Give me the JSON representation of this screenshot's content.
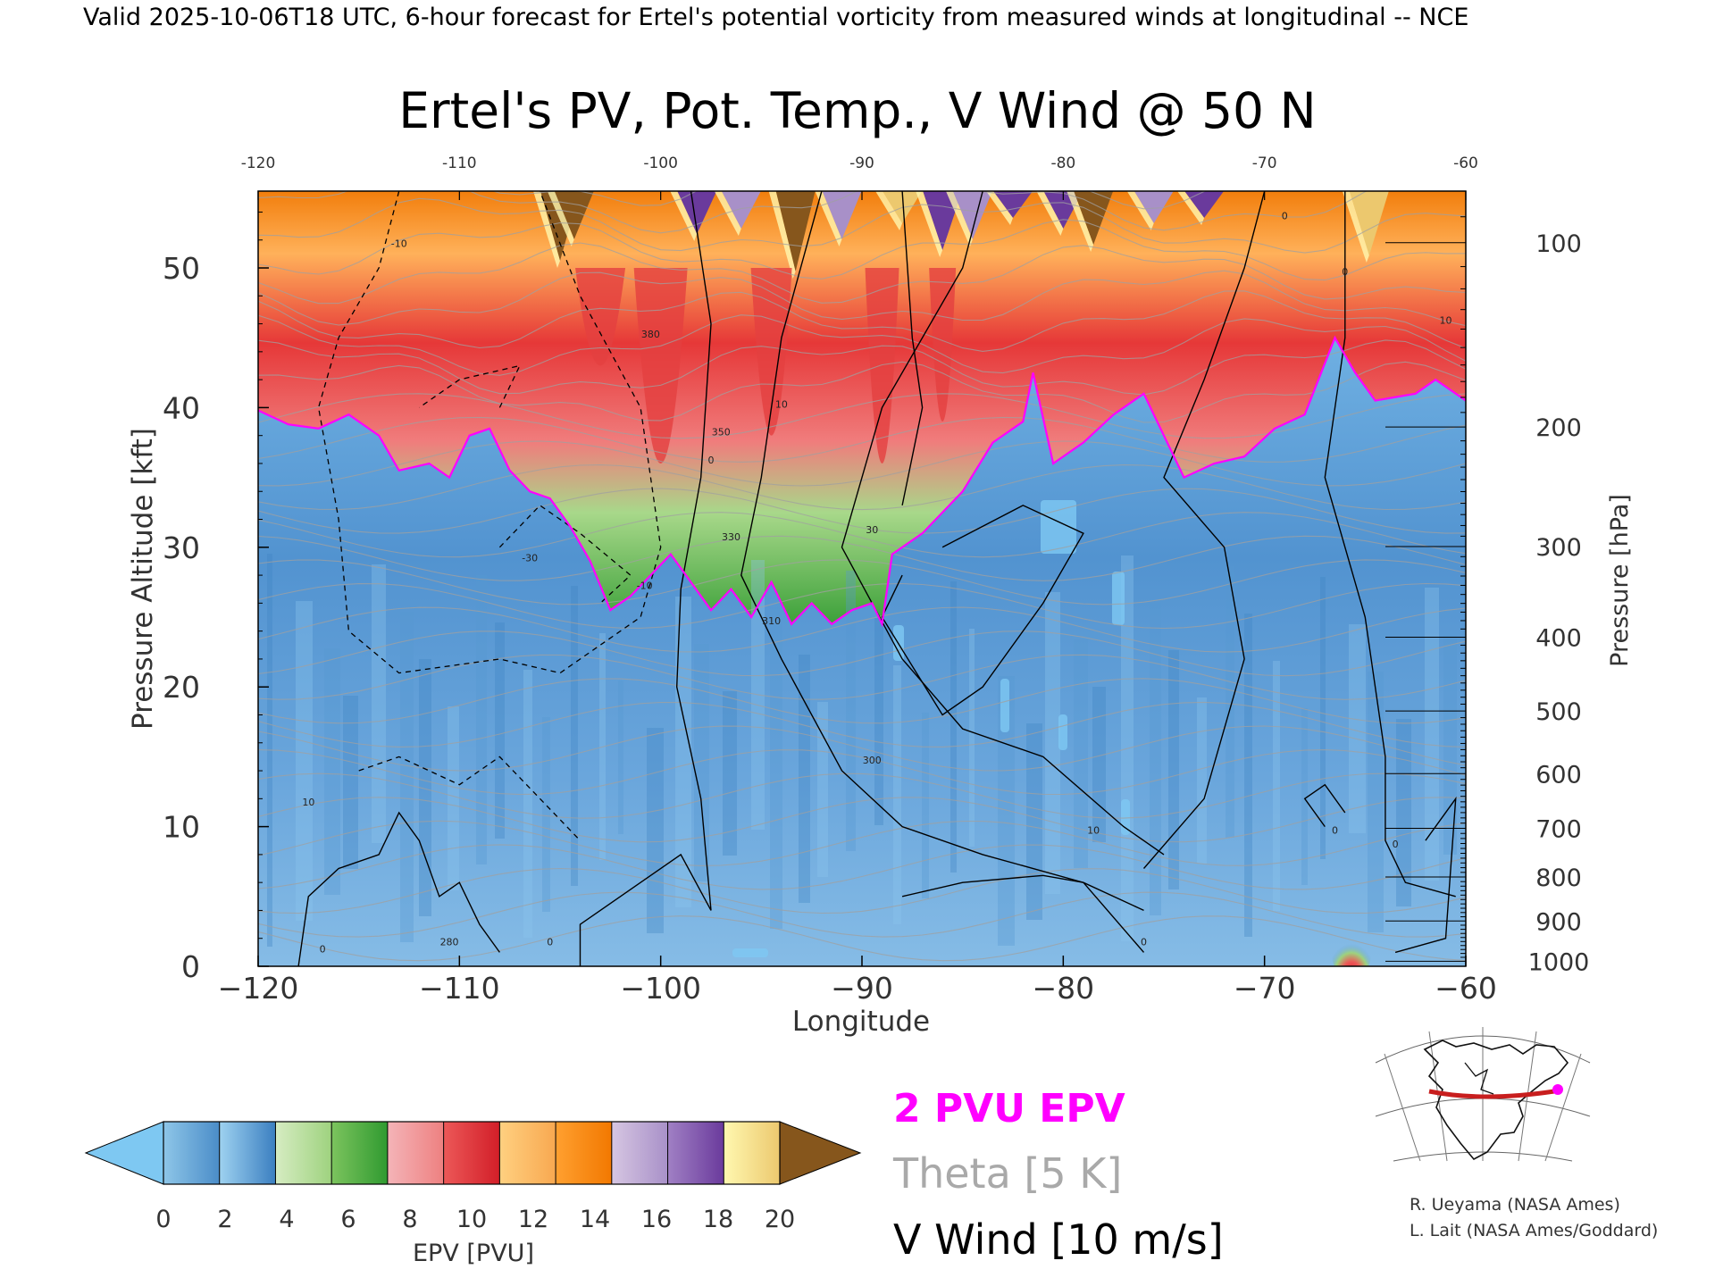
{
  "header": "Valid 2025-10-06T18 UTC, 6-hour forecast for Ertel's potential vorticity from measured winds at longitudinal -- NCE",
  "chart_data": {
    "type": "heatmap",
    "title": "Ertel's PV, Pot. Temp., V Wind @ 50 N",
    "xlabel": "Longitude",
    "ylabel": "Pressure Altitude [kft]",
    "ylabel_right": "Pressure [hPa]",
    "xlim": [
      -120,
      -60
    ],
    "ylim": [
      0,
      55.5
    ],
    "x_ticks": [
      -120,
      -110,
      -100,
      -90,
      -80,
      -70,
      -60
    ],
    "x_tick_labels": [
      "−120",
      "−110",
      "−100",
      "−90",
      "−80",
      "−70",
      "−60"
    ],
    "top_tick_labels": [
      "-120",
      "-110",
      "-100",
      "-90",
      "-80",
      "-70",
      "-60"
    ],
    "y_ticks": [
      0,
      10,
      20,
      30,
      40,
      50
    ],
    "y_tick_labels": [
      "0",
      "10",
      "20",
      "30",
      "40",
      "50"
    ],
    "pressure_ticks": [
      {
        "hpa": 100,
        "label": "100"
      },
      {
        "hpa": 200,
        "label": "200"
      },
      {
        "hpa": 300,
        "label": "300"
      },
      {
        "hpa": 400,
        "label": "400"
      },
      {
        "hpa": 500,
        "label": "500"
      },
      {
        "hpa": 600,
        "label": "600"
      },
      {
        "hpa": 700,
        "label": "700"
      },
      {
        "hpa": 800,
        "label": "800"
      },
      {
        "hpa": 900,
        "label": "900"
      },
      {
        "hpa": 1000,
        "label": "1000"
      }
    ],
    "colorbar": {
      "label": "EPV [PVU]",
      "ticks": [
        "0",
        "2",
        "4",
        "6",
        "8",
        "10",
        "12",
        "14",
        "16",
        "18",
        "20"
      ],
      "under_color": "#7ec8f2",
      "over_color": "#86561c",
      "bins": [
        [
          "#8ec6e8",
          "#4a8cc8"
        ],
        [
          "#9ed2f0",
          "#3a7ec0"
        ],
        [
          "#d6ecc2",
          "#9ed27e"
        ],
        [
          "#7cc45e",
          "#2f9a30"
        ],
        [
          "#f4b4b8",
          "#ee8080"
        ],
        [
          "#ec5858",
          "#d21e28"
        ],
        [
          "#ffd080",
          "#f8a850"
        ],
        [
          "#ffa030",
          "#f27800"
        ],
        [
          "#d6c6e2",
          "#a890c8"
        ],
        [
          "#a080c4",
          "#6a3a9c"
        ],
        [
          "#fff8b0",
          "#ecc86e"
        ]
      ]
    },
    "legend": [
      {
        "label": "2 PVU EPV",
        "color": "#ff00ff"
      },
      {
        "label": "Theta [5 K]",
        "color": "#a9a9a9"
      },
      {
        "label": "V Wind [10 m/s]",
        "color": "#000000"
      }
    ],
    "tropopause_2pvu_kft": [
      {
        "lon": -120.0,
        "kft": 39.8
      },
      {
        "lon": -118.5,
        "kft": 38.8
      },
      {
        "lon": -117.0,
        "kft": 38.5
      },
      {
        "lon": -115.5,
        "kft": 39.5
      },
      {
        "lon": -114.0,
        "kft": 38.0
      },
      {
        "lon": -113.0,
        "kft": 35.5
      },
      {
        "lon": -111.5,
        "kft": 36.0
      },
      {
        "lon": -110.5,
        "kft": 35.0
      },
      {
        "lon": -109.5,
        "kft": 38.0
      },
      {
        "lon": -108.5,
        "kft": 38.5
      },
      {
        "lon": -107.5,
        "kft": 35.5
      },
      {
        "lon": -106.5,
        "kft": 34.0
      },
      {
        "lon": -105.5,
        "kft": 33.5
      },
      {
        "lon": -104.5,
        "kft": 31.5
      },
      {
        "lon": -103.5,
        "kft": 29.0
      },
      {
        "lon": -102.5,
        "kft": 25.5
      },
      {
        "lon": -101.5,
        "kft": 26.5
      },
      {
        "lon": -100.5,
        "kft": 28.0
      },
      {
        "lon": -99.5,
        "kft": 29.5
      },
      {
        "lon": -98.5,
        "kft": 27.5
      },
      {
        "lon": -97.5,
        "kft": 25.5
      },
      {
        "lon": -96.5,
        "kft": 27.0
      },
      {
        "lon": -95.5,
        "kft": 25.0
      },
      {
        "lon": -94.5,
        "kft": 27.5
      },
      {
        "lon": -93.5,
        "kft": 24.5
      },
      {
        "lon": -92.5,
        "kft": 26.0
      },
      {
        "lon": -91.5,
        "kft": 24.5
      },
      {
        "lon": -90.5,
        "kft": 25.5
      },
      {
        "lon": -89.5,
        "kft": 26.0
      },
      {
        "lon": -89.0,
        "kft": 24.5
      },
      {
        "lon": -88.5,
        "kft": 29.5
      },
      {
        "lon": -87.0,
        "kft": 31.0
      },
      {
        "lon": -85.0,
        "kft": 34.0
      },
      {
        "lon": -83.5,
        "kft": 37.5
      },
      {
        "lon": -82.0,
        "kft": 39.0
      },
      {
        "lon": -81.5,
        "kft": 42.5
      },
      {
        "lon": -80.5,
        "kft": 36.0
      },
      {
        "lon": -79.0,
        "kft": 37.5
      },
      {
        "lon": -77.5,
        "kft": 39.5
      },
      {
        "lon": -76.0,
        "kft": 41.0
      },
      {
        "lon": -74.0,
        "kft": 35.0
      },
      {
        "lon": -72.5,
        "kft": 36.0
      },
      {
        "lon": -71.0,
        "kft": 36.5
      },
      {
        "lon": -69.5,
        "kft": 38.5
      },
      {
        "lon": -68.0,
        "kft": 39.5
      },
      {
        "lon": -66.5,
        "kft": 45.0
      },
      {
        "lon": -65.5,
        "kft": 42.5
      },
      {
        "lon": -64.5,
        "kft": 40.5
      },
      {
        "lon": -62.5,
        "kft": 41.0
      },
      {
        "lon": -61.5,
        "kft": 42.0
      },
      {
        "lon": -60.0,
        "kft": 40.5
      }
    ],
    "contour_labels": [
      {
        "text": "10",
        "lon": -117.5,
        "kft": 11.5
      },
      {
        "text": "0",
        "lon": -116.8,
        "kft": 1.0
      },
      {
        "text": "0",
        "lon": -105.5,
        "kft": 1.5
      },
      {
        "text": "-10",
        "lon": -100.8,
        "kft": 27.0
      },
      {
        "text": "-30",
        "lon": -106.5,
        "kft": 29.0
      },
      {
        "text": "-10",
        "lon": -113.0,
        "kft": 51.5
      },
      {
        "text": "0",
        "lon": -97.5,
        "kft": 36.0
      },
      {
        "text": "10",
        "lon": -94.0,
        "kft": 40.0
      },
      {
        "text": "30",
        "lon": -89.5,
        "kft": 31.0
      },
      {
        "text": "0",
        "lon": -76.0,
        "kft": 1.5
      },
      {
        "text": "10",
        "lon": -78.5,
        "kft": 9.5
      },
      {
        "text": "0",
        "lon": -69.0,
        "kft": 53.5
      },
      {
        "text": "0",
        "lon": -66.0,
        "kft": 49.5
      },
      {
        "text": "0",
        "lon": -66.5,
        "kft": 9.5
      },
      {
        "text": "0",
        "lon": -63.5,
        "kft": 8.5
      },
      {
        "text": "10",
        "lon": -61.0,
        "kft": 46.0
      },
      {
        "text": "380",
        "lon": -100.5,
        "kft": 45.0
      },
      {
        "text": "350",
        "lon": -97.0,
        "kft": 38.0
      },
      {
        "text": "330",
        "lon": -96.5,
        "kft": 30.5
      },
      {
        "text": "310",
        "lon": -94.5,
        "kft": 24.5
      },
      {
        "text": "300",
        "lon": -89.5,
        "kft": 14.5
      },
      {
        "text": "280",
        "lon": -110.5,
        "kft": 1.5
      }
    ]
  },
  "map_inset": {
    "label": "50 N section locator map"
  },
  "credits": [
    "R. Ueyama (NASA Ames)",
    "L. Lait (NASA Ames/Goddard)"
  ]
}
